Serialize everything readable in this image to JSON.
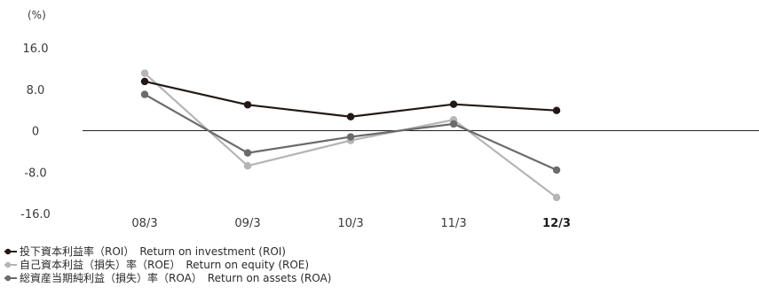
{
  "chart_data": {
    "type": "line",
    "unit": "(%)",
    "categories": [
      "08/3",
      "09/3",
      "10/3",
      "11/3",
      "12/3"
    ],
    "emphasized_category": "12/3",
    "ylim": [
      -16,
      16
    ],
    "yticks": [
      "16.0",
      "8.0",
      "0",
      "-8.0",
      "-16.0"
    ],
    "ytick_values": [
      16,
      8,
      0,
      -8,
      -16
    ],
    "zero_line": true,
    "grid": false,
    "legend_position": "bottom-left",
    "series": [
      {
        "name": "投下資本利益率（ROI）　Return on investment (ROI)",
        "color": "#231815",
        "values": [
          9.5,
          5.0,
          2.7,
          5.1,
          3.9
        ]
      },
      {
        "name": "自己資本利益（損失）率（ROE）　Return on equity (ROE)",
        "color": "#b5b5b5",
        "values": [
          11.1,
          -6.8,
          -1.9,
          2.1,
          -12.9
        ]
      },
      {
        "name": "総資産当期純利益（損失）率（ROA）　Return on assets (ROA)",
        "color": "#6b6b6b",
        "values": [
          7.0,
          -4.3,
          -1.2,
          1.3,
          -7.6
        ]
      }
    ]
  }
}
